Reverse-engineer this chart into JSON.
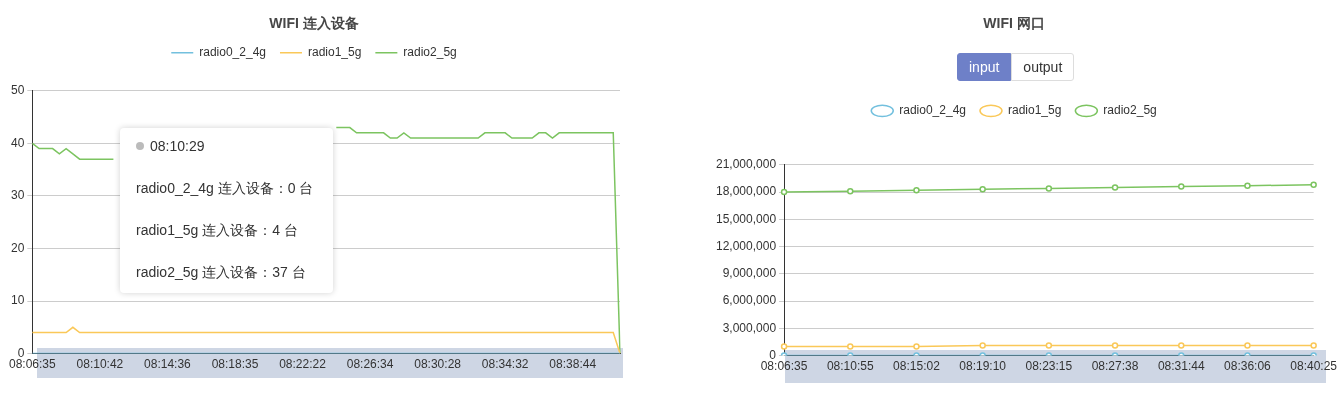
{
  "chart_data": [
    {
      "type": "line",
      "title": "WIFI 连入设备",
      "categories": [
        "08:06:35",
        null,
        null,
        null,
        null,
        null,
        null,
        null,
        null,
        null,
        "08:10:42",
        null,
        null,
        null,
        null,
        null,
        null,
        null,
        null,
        null,
        "08:14:36",
        null,
        null,
        null,
        null,
        null,
        null,
        null,
        null,
        null,
        "08:18:35",
        null,
        null,
        null,
        null,
        null,
        null,
        null,
        null,
        null,
        "08:22:22",
        null,
        null,
        null,
        null,
        null,
        null,
        null,
        null,
        null,
        "08:26:34",
        null,
        null,
        null,
        null,
        null,
        null,
        null,
        null,
        null,
        "08:30:28",
        null,
        null,
        null,
        null,
        null,
        null,
        null,
        null,
        null,
        "08:34:32",
        null,
        null,
        null,
        null,
        null,
        null,
        null,
        null,
        null,
        "08:38:44",
        null,
        null,
        null,
        null,
        null,
        null,
        null
      ],
      "series": [
        {
          "name": "radio0_2_4g",
          "color": "#73c0de",
          "values": [
            0,
            0,
            0,
            0,
            0,
            0,
            0,
            0,
            0,
            0,
            0,
            0,
            0,
            0,
            0,
            0,
            0,
            0,
            0,
            0,
            0,
            0,
            0,
            0,
            0,
            0,
            0,
            0,
            0,
            0,
            0,
            0,
            0,
            0,
            0,
            0,
            0,
            0,
            0,
            0,
            0,
            0,
            0,
            0,
            0,
            0,
            0,
            0,
            0,
            0,
            0,
            0,
            0,
            0,
            0,
            0,
            0,
            0,
            0,
            0,
            0,
            0,
            0,
            0,
            0,
            0,
            0,
            0,
            0,
            0,
            0,
            0,
            0,
            0,
            0,
            0,
            0,
            0,
            0,
            0,
            0,
            0,
            0,
            0,
            0,
            0,
            0,
            0
          ]
        },
        {
          "name": "radio1_5g",
          "color": "#fac858",
          "values": [
            4,
            4,
            4,
            4,
            4,
            4,
            5,
            4,
            4,
            4,
            4,
            4,
            4,
            4,
            4,
            4,
            4,
            4,
            4,
            4,
            4,
            4,
            4,
            4,
            4,
            4,
            4,
            4,
            4,
            4,
            4,
            4,
            4,
            4,
            4,
            4,
            4,
            4,
            4,
            4,
            4,
            4,
            4,
            4,
            4,
            4,
            4,
            4,
            4,
            4,
            4,
            4,
            4,
            4,
            4,
            4,
            4,
            4,
            4,
            4,
            4,
            4,
            4,
            4,
            4,
            4,
            4,
            4,
            4,
            4,
            4,
            4,
            4,
            4,
            4,
            4,
            4,
            4,
            4,
            4,
            4,
            4,
            4,
            4,
            4,
            4,
            4,
            0
          ]
        },
        {
          "name": "radio2_5g",
          "color": "#7cc460",
          "values": [
            40,
            39,
            39,
            39,
            38,
            39,
            38,
            37,
            37,
            37,
            37,
            37,
            37,
            null,
            null,
            null,
            null,
            null,
            null,
            null,
            null,
            null,
            null,
            null,
            null,
            null,
            null,
            null,
            null,
            null,
            null,
            null,
            null,
            null,
            null,
            null,
            null,
            null,
            null,
            null,
            null,
            null,
            null,
            null,
            null,
            43,
            43,
            43,
            42,
            42,
            42,
            42,
            42,
            41,
            41,
            42,
            41,
            41,
            41,
            41,
            41,
            41,
            41,
            41,
            41,
            41,
            41,
            42,
            42,
            42,
            42,
            41,
            41,
            41,
            41,
            42,
            42,
            41,
            42,
            42,
            42,
            42,
            42,
            42,
            42,
            42,
            42,
            0
          ]
        }
      ],
      "ylim": [
        0,
        50
      ],
      "yticks": [
        0,
        10,
        20,
        30,
        40,
        50
      ],
      "grid": "y",
      "legend": "top",
      "annotations": [
        "08:10:29",
        "radio0_2_4g 连入设备：0 台",
        "radio1_5g 连入设备：4 台",
        "radio2_5g 连入设备：37 台"
      ]
    },
    {
      "type": "line",
      "title": "WIFI 网口",
      "categories": [
        "08:06:35",
        "08:10:55",
        "08:15:02",
        "08:19:10",
        "08:23:15",
        "08:27:38",
        "08:31:44",
        "08:36:06",
        "08:40:25"
      ],
      "series": [
        {
          "name": "radio0_2_4g",
          "color": "#73c0de",
          "values": [
            0,
            0,
            0,
            0,
            0,
            0,
            0,
            0,
            0
          ]
        },
        {
          "name": "radio1_5g",
          "color": "#fac858",
          "values": [
            1000000,
            1000000,
            1000000,
            1100000,
            1100000,
            1100000,
            1100000,
            1100000,
            1100000
          ]
        },
        {
          "name": "radio2_5g",
          "color": "#7cc460",
          "values": [
            18000000,
            18100000,
            18200000,
            18300000,
            18400000,
            18500000,
            18600000,
            18700000,
            18800000
          ]
        }
      ],
      "ylim": [
        0,
        21000000
      ],
      "yticks": [
        0,
        {
          "value": 3000000,
          "label": "3,000,000"
        },
        {
          "value": 6000000,
          "label": "6,000,000"
        },
        {
          "value": 9000000,
          "label": "9,000,000"
        },
        {
          "value": 12000000,
          "label": "12,000,000"
        },
        {
          "value": 15000000,
          "label": "15,000,000"
        },
        {
          "value": 18000000,
          "label": "18,000,000"
        },
        {
          "value": 21000000,
          "label": "21,000,000"
        }
      ],
      "grid": "y",
      "legend": "top",
      "marker": "circle",
      "annotations": [
        "input",
        "output"
      ]
    }
  ]
}
